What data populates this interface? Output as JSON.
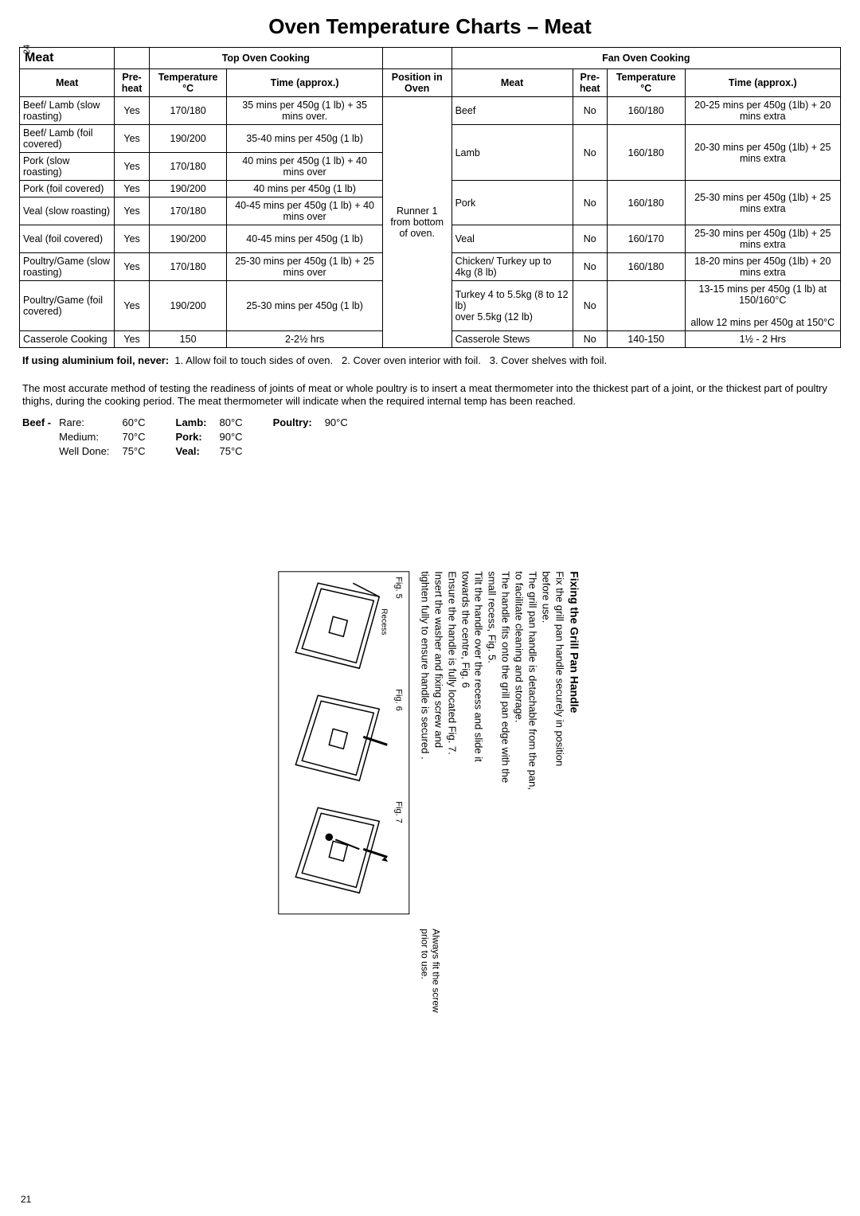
{
  "title": "Oven Temperature Charts – Meat",
  "page_num_top": "24",
  "page_num_bottom": "21",
  "table": {
    "section_left": "Meat",
    "top_oven_head": "Top Oven Cooking",
    "fan_oven_head": "Fan Oven Cooking",
    "cols_left": [
      "Meat",
      "Pre-heat",
      "Temperature °C",
      "Time (approx.)",
      "Position in Oven"
    ],
    "cols_right": [
      "Meat",
      "Pre-heat",
      "Temperature °C",
      "Time (approx.)"
    ],
    "position_text": "Runner 1 from bottom of oven.",
    "left_rows": [
      {
        "meat": "Beef/ Lamb (slow roasting)",
        "pre": "Yes",
        "temp": "170/180",
        "time": "35 mins per 450g (1 lb) + 35 mins over."
      },
      {
        "meat": "Beef/ Lamb (foil covered)",
        "pre": "Yes",
        "temp": "190/200",
        "time": "35-40 mins per 450g (1 lb)"
      },
      {
        "meat": "Pork (slow roasting)",
        "pre": "Yes",
        "temp": "170/180",
        "time": "40 mins per 450g (1 lb) + 40 mins over"
      },
      {
        "meat": "Pork (foil covered)",
        "pre": "Yes",
        "temp": "190/200",
        "time": "40 mins per 450g (1 lb)"
      },
      {
        "meat": "Veal (slow roasting)",
        "pre": "Yes",
        "temp": "170/180",
        "time": "40-45 mins per 450g (1 lb) + 40 mins over"
      },
      {
        "meat": "Veal (foil covered)",
        "pre": "Yes",
        "temp": "190/200",
        "time": "40-45 mins per 450g (1 lb)"
      },
      {
        "meat": "Poultry/Game (slow roasting)",
        "pre": "Yes",
        "temp": "170/180",
        "time": "25-30 mins per 450g (1 lb) + 25 mins over"
      },
      {
        "meat": "Poultry/Game (foil covered)",
        "pre": "Yes",
        "temp": "190/200",
        "time": "25-30 mins per 450g (1 lb)"
      },
      {
        "meat": "Casserole Cooking",
        "pre": "Yes",
        "temp": "150",
        "time": "2-2½ hrs"
      }
    ],
    "right_rows": [
      {
        "meat": "Beef",
        "pre": "No",
        "temp": "160/180",
        "time": "20-25 mins per 450g (1lb) + 20 mins extra"
      },
      {
        "meat": "Lamb",
        "pre": "No",
        "temp": "160/180",
        "time": "20-30 mins per 450g (1lb) + 25 mins extra"
      },
      {
        "meat": "Pork",
        "pre": "No",
        "temp": "160/180",
        "time": "25-30 mins per 450g (1lb) + 25 mins extra"
      },
      {
        "meat": "Veal",
        "pre": "No",
        "temp": "160/170",
        "time": "25-30 mins per 450g (1lb) + 25 mins extra"
      },
      {
        "meat": "Chicken/ Turkey up to 4kg (8 lb)",
        "pre": "No",
        "temp": "160/180",
        "time": "18-20 mins per 450g (1lb) + 20 mins extra"
      },
      {
        "meat": "Turkey 4 to 5.5kg (8 to 12 lb)\nover 5.5kg (12 lb)",
        "pre": "No",
        "temp": "",
        "time": "13-15 mins per 450g (1 lb) at 150/160°C\nallow 12 mins per 450g at 150°C"
      },
      {
        "meat": "Casserole Stews",
        "pre": "No",
        "temp": "140-150",
        "time": "1½ - 2 Hrs"
      }
    ]
  },
  "foil_note_prefix": "If using aluminium foil, never:",
  "foil_items": [
    "1. Allow foil to touch sides of oven.",
    "2. Cover oven interior with foil.",
    "3. Cover shelves with foil."
  ],
  "thermo_para": "The most accurate method of testing the readiness of joints of meat or whole poultry is to insert a meat thermometer into the thickest part of a joint, or the thickest part of poultry thighs, during the cooking period. The meat thermometer will indicate when the required internal temp has been reached.",
  "internal_temps": {
    "beef_head": "Beef -",
    "beef": [
      {
        "label": "Rare:",
        "val": "60°C"
      },
      {
        "label": "Medium:",
        "val": "70°C"
      },
      {
        "label": "Well Done:",
        "val": "75°C"
      }
    ],
    "other": [
      {
        "label": "Lamb:",
        "val": "80°C"
      },
      {
        "label": "Pork:",
        "val": "90°C"
      },
      {
        "label": "Veal:",
        "val": "75°C"
      }
    ],
    "poultry_label": "Poultry:",
    "poultry_val": "90°C"
  },
  "grill": {
    "heading": "Fixing the Grill Pan Handle",
    "para1": "Fix the grill pan handle securely in position before use.",
    "para2": "The grill pan handle is detachable from the pan, to facilitate cleaning and storage.",
    "para3": "The handle fits onto the grill pan edge with the small recess, Fig. 5.",
    "para4": "Tilt the handle over the recess and slide it towards the centre, Fig. 6",
    "para5": "Ensure the handle is fully located Fig. 7.",
    "para6": "Insert the washer and fixing screw and tighten fully to ensure handle is secured .",
    "fig5": "Fig. 5",
    "fig6": "Fig. 6",
    "fig7": "Fig. 7",
    "recess": "Recess",
    "always": "Always fit the screw prior to use."
  }
}
